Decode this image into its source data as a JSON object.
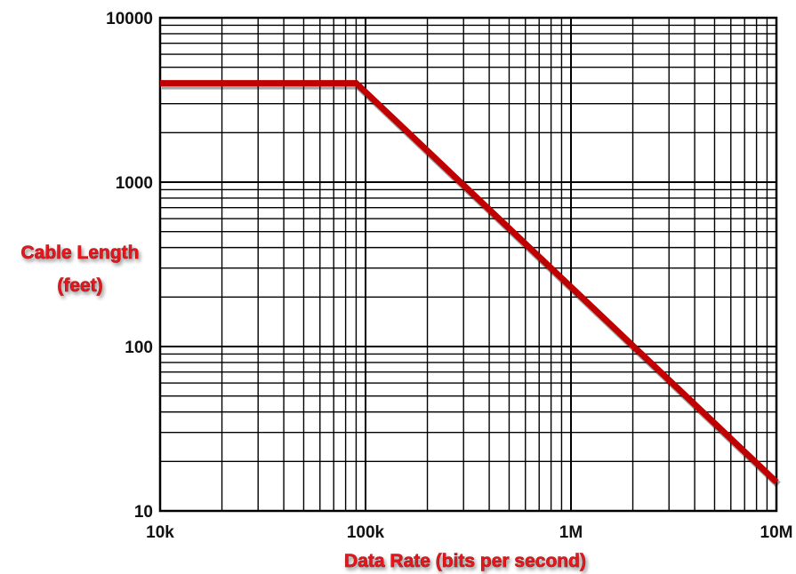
{
  "chart_data": {
    "type": "line",
    "xlabel": "Data Rate (bits per second)",
    "ylabel": [
      "Cable Length",
      "(feet)"
    ],
    "x_scale": "log",
    "y_scale": "log",
    "xlim": [
      10000,
      10000000
    ],
    "ylim": [
      10,
      10000
    ],
    "grid": true,
    "x_tick_labels": [
      {
        "value": 10000,
        "label": "10k"
      },
      {
        "value": 100000,
        "label": "100k"
      },
      {
        "value": 1000000,
        "label": "1M"
      },
      {
        "value": 10000000,
        "label": "10M"
      }
    ],
    "y_tick_labels": [
      {
        "value": 10,
        "label": "10"
      },
      {
        "value": 100,
        "label": "100"
      },
      {
        "value": 1000,
        "label": "1000"
      },
      {
        "value": 10000,
        "label": "10000"
      }
    ],
    "series": [
      {
        "color": "#c00000",
        "points": [
          [
            10000,
            4000
          ],
          [
            90000,
            4000
          ],
          [
            10000000,
            15
          ]
        ]
      }
    ]
  }
}
